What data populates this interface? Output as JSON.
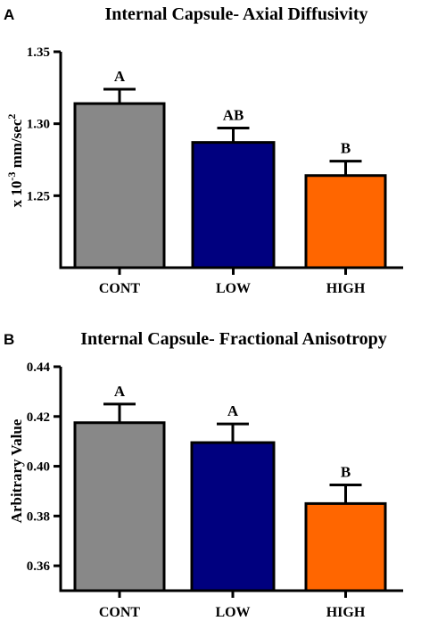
{
  "chart_data": [
    {
      "type": "bar",
      "panel": "A",
      "title": "Internal Capsule- Axial Diffusivity",
      "ylabel_prefix": "x 10",
      "ylabel_exp": "-3",
      "ylabel_suffix": " mm/sec",
      "ylabel_sup2": "2",
      "categories": [
        "CONT",
        "LOW",
        "HIGH"
      ],
      "values": [
        1.314,
        1.287,
        1.264
      ],
      "errors": [
        0.01,
        0.01,
        0.01
      ],
      "sig_labels": [
        "A",
        "AB",
        "B"
      ],
      "colors": [
        "#888888",
        "#00007f",
        "#ff6600"
      ],
      "ylim": [
        1.2,
        1.35
      ],
      "yticks": [
        1.25,
        1.3,
        1.35
      ],
      "ytick_labels": [
        "1.25",
        "1.30",
        "1.35"
      ]
    },
    {
      "type": "bar",
      "panel": "B",
      "title": "Internal Capsule- Fractional Anisotropy",
      "ylabel": "Arbitrary Value",
      "categories": [
        "CONT",
        "LOW",
        "HIGH"
      ],
      "values": [
        0.4175,
        0.4095,
        0.385
      ],
      "errors": [
        0.0075,
        0.0075,
        0.0075
      ],
      "sig_labels": [
        "A",
        "A",
        "B"
      ],
      "colors": [
        "#888888",
        "#00007f",
        "#ff6600"
      ],
      "ylim": [
        0.35,
        0.44
      ],
      "yticks": [
        0.36,
        0.38,
        0.4,
        0.42,
        0.44
      ],
      "ytick_labels": [
        "0.36",
        "0.38",
        "0.40",
        "0.42",
        "0.44"
      ]
    }
  ]
}
